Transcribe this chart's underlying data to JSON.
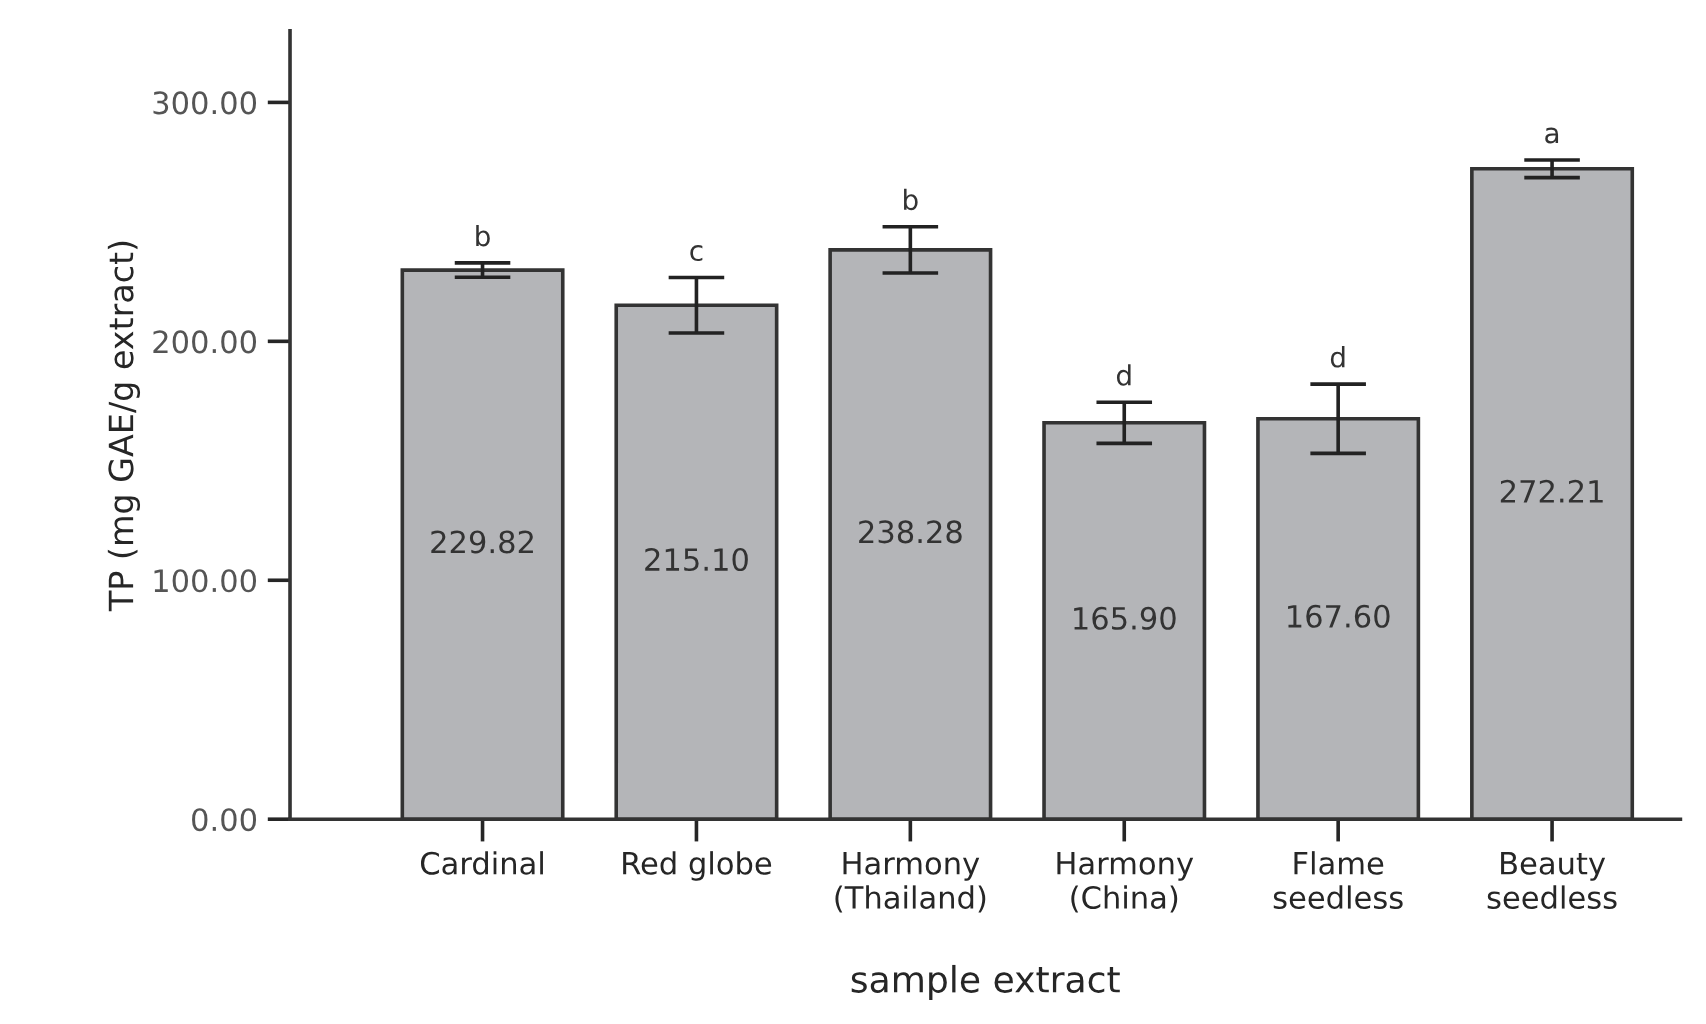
{
  "chart_data": {
    "type": "bar",
    "xlabel": "sample extract",
    "ylabel": "TP (mg GAE/g extract)",
    "categories": [
      "Cardinal",
      "Red globe",
      "Harmony\n(Thailand)",
      "Harmony\n(China)",
      "Flame\nseedless",
      "Beauty\nseedless"
    ],
    "values": [
      229.82,
      215.1,
      238.28,
      165.9,
      167.6,
      272.21
    ],
    "errors": [
      3,
      11.6,
      9.7,
      8.6,
      14.5,
      3.7
    ],
    "color": "#b4b5b8",
    "value_labels": [
      "229.82",
      "215.10",
      "238.28",
      "165.90",
      "167.60",
      "272.21"
    ],
    "ylim": [
      0,
      330
    ],
    "yticks": [
      {
        "value": 0,
        "label": "0.00"
      },
      {
        "value": 100,
        "label": "100.00"
      },
      {
        "value": 200,
        "label": "200.00"
      },
      {
        "value": 300,
        "label": "300.00"
      }
    ],
    "grid": false,
    "annotations": [
      {
        "text": "b",
        "x": "Cardinal",
        "y": 232.82
      },
      {
        "text": "c",
        "x": "Red globe",
        "y": 226.7
      },
      {
        "text": "b",
        "x": "Harmony\n(Thailand)",
        "y": 247.98
      },
      {
        "text": "d",
        "x": "Harmony\n(China)",
        "y": 174.5
      },
      {
        "text": "d",
        "x": "Flame\nseedless",
        "y": 182.1
      },
      {
        "text": "a",
        "x": "Beauty\nseedless",
        "y": 275.91
      }
    ]
  }
}
